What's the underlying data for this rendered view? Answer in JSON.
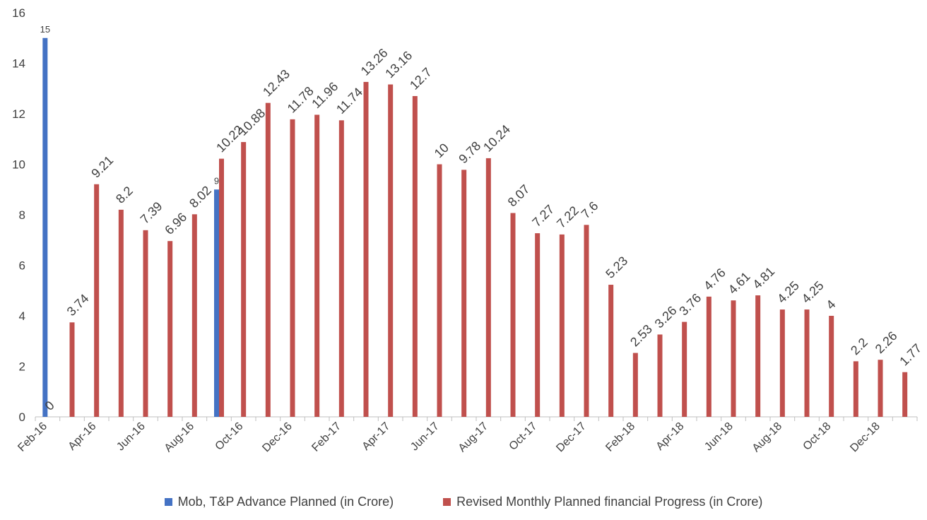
{
  "chart_data": {
    "type": "bar",
    "title": "",
    "xlabel": "",
    "ylabel": "",
    "ylim": [
      0,
      16
    ],
    "yticks": [
      0,
      2,
      4,
      6,
      8,
      10,
      12,
      14,
      16
    ],
    "grid": false,
    "legend_position": "bottom",
    "x_tick_labels": [
      "Feb-16",
      "Apr-16",
      "Jun-16",
      "Aug-16",
      "Oct-16",
      "Dec-16",
      "Feb-17",
      "Apr-17",
      "Jun-17",
      "Aug-17",
      "Oct-17",
      "Dec-17",
      "Feb-18",
      "Apr-18",
      "Jun-18",
      "Aug-18",
      "Oct-18",
      "Dec-18"
    ],
    "categories": [
      "Feb-16",
      "Mar-16",
      "Apr-16",
      "May-16",
      "Jun-16",
      "Jul-16",
      "Aug-16",
      "Sep-16",
      "Oct-16",
      "Nov-16",
      "Dec-16",
      "Jan-17",
      "Feb-17",
      "Mar-17",
      "Apr-17",
      "May-17",
      "Jun-17",
      "Jul-17",
      "Aug-17",
      "Sep-17",
      "Oct-17",
      "Nov-17",
      "Dec-17",
      "Jan-18",
      "Feb-18",
      "Mar-18",
      "Apr-18",
      "May-18",
      "Jun-18",
      "Jul-18",
      "Aug-18",
      "Sep-18",
      "Oct-18",
      "Nov-18",
      "Dec-18",
      "Jan-19"
    ],
    "series": [
      {
        "name": "Mob, T&P Advance Planned (in Crore)",
        "color": "#4472C4",
        "points": [
          {
            "category": "Feb-16",
            "value": 15,
            "label": "15"
          },
          {
            "category": "Sep-16",
            "value": 9,
            "label": "9"
          }
        ]
      },
      {
        "name": "Revised Monthly Planned financial Progress (in Crore)",
        "color": "#C0504D",
        "points": [
          {
            "category": "Feb-16",
            "value": 0,
            "label": "0"
          },
          {
            "category": "Mar-16",
            "value": 3.74,
            "label": "3.74"
          },
          {
            "category": "Apr-16",
            "value": 9.21,
            "label": "9.21"
          },
          {
            "category": "May-16",
            "value": 8.2,
            "label": "8.2"
          },
          {
            "category": "Jun-16",
            "value": 7.39,
            "label": "7.39"
          },
          {
            "category": "Jul-16",
            "value": 6.96,
            "label": "6.96"
          },
          {
            "category": "Aug-16",
            "value": 8.02,
            "label": "8.02"
          },
          {
            "category": "Sep-16",
            "value": 10.22,
            "label": "10.22"
          },
          {
            "category": "Oct-16",
            "value": 10.88,
            "label": "10.88"
          },
          {
            "category": "Nov-16",
            "value": 12.43,
            "label": "12.43"
          },
          {
            "category": "Dec-16",
            "value": 11.78,
            "label": "11.78"
          },
          {
            "category": "Jan-17",
            "value": 11.96,
            "label": "11.96"
          },
          {
            "category": "Feb-17",
            "value": 11.74,
            "label": "11.74"
          },
          {
            "category": "Mar-17",
            "value": 13.26,
            "label": "13.26"
          },
          {
            "category": "Apr-17",
            "value": 13.16,
            "label": "13.16"
          },
          {
            "category": "May-17",
            "value": 12.7,
            "label": "12.7"
          },
          {
            "category": "Jun-17",
            "value": 10,
            "label": "10"
          },
          {
            "category": "Jul-17",
            "value": 9.78,
            "label": "9.78"
          },
          {
            "category": "Aug-17",
            "value": 10.24,
            "label": "10.24"
          },
          {
            "category": "Sep-17",
            "value": 8.07,
            "label": "8.07"
          },
          {
            "category": "Oct-17",
            "value": 7.27,
            "label": "7.27"
          },
          {
            "category": "Nov-17",
            "value": 7.22,
            "label": "7.22"
          },
          {
            "category": "Dec-17",
            "value": 7.6,
            "label": "7.6"
          },
          {
            "category": "Jan-18",
            "value": 5.23,
            "label": "5.23"
          },
          {
            "category": "Feb-18",
            "value": 2.53,
            "label": "2.53"
          },
          {
            "category": "Mar-18",
            "value": 3.26,
            "label": "3.26"
          },
          {
            "category": "Apr-18",
            "value": 3.76,
            "label": "3.76"
          },
          {
            "category": "May-18",
            "value": 4.76,
            "label": "4.76"
          },
          {
            "category": "Jun-18",
            "value": 4.61,
            "label": "4.61"
          },
          {
            "category": "Jul-18",
            "value": 4.81,
            "label": "4.81"
          },
          {
            "category": "Aug-18",
            "value": 4.25,
            "label": "4.25"
          },
          {
            "category": "Sep-18",
            "value": 4.25,
            "label": "4.25"
          },
          {
            "category": "Oct-18",
            "value": 4,
            "label": "4"
          },
          {
            "category": "Nov-18",
            "value": 2.2,
            "label": "2.2"
          },
          {
            "category": "Dec-18",
            "value": 2.26,
            "label": "2.26"
          },
          {
            "category": "Jan-19",
            "value": 1.77,
            "label": "1.77"
          }
        ]
      }
    ]
  },
  "legend": {
    "items": [
      {
        "label": "Mob, T&P Advance Planned (in Crore)",
        "color": "#4472C4"
      },
      {
        "label": "Revised Monthly Planned financial Progress (in Crore)",
        "color": "#C0504D"
      }
    ]
  }
}
